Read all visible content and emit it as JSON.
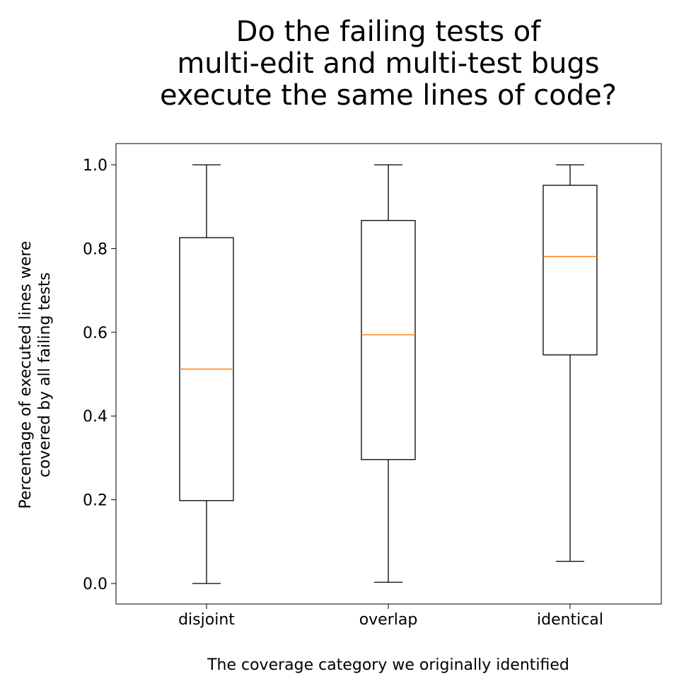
{
  "chart_data": {
    "type": "box",
    "title_lines": [
      "Do the failing tests of",
      "multi-edit and multi-test bugs",
      "execute the same lines of code?"
    ],
    "xlabel": "The coverage category we originally identified",
    "ylabel_lines": [
      "Percentage of executed lines were",
      "covered by all failing tests"
    ],
    "categories": [
      "disjoint",
      "overlap",
      "identical"
    ],
    "boxes": [
      {
        "category": "disjoint",
        "whisker_low": 0.0,
        "q1": 0.198,
        "median": 0.512,
        "q3": 0.826,
        "whisker_high": 1.0
      },
      {
        "category": "overlap",
        "whisker_low": 0.003,
        "q1": 0.296,
        "median": 0.594,
        "q3": 0.867,
        "whisker_high": 1.0
      },
      {
        "category": "identical",
        "whisker_low": 0.053,
        "q1": 0.546,
        "median": 0.781,
        "q3": 0.951,
        "whisker_high": 1.0
      }
    ],
    "yticks": [
      "0.0",
      "0.2",
      "0.4",
      "0.6",
      "0.8",
      "1.0"
    ],
    "ylim": [
      -0.05,
      1.05
    ],
    "grid": false,
    "colors": {
      "box": "#000000",
      "median": "#ff7f0e"
    }
  }
}
